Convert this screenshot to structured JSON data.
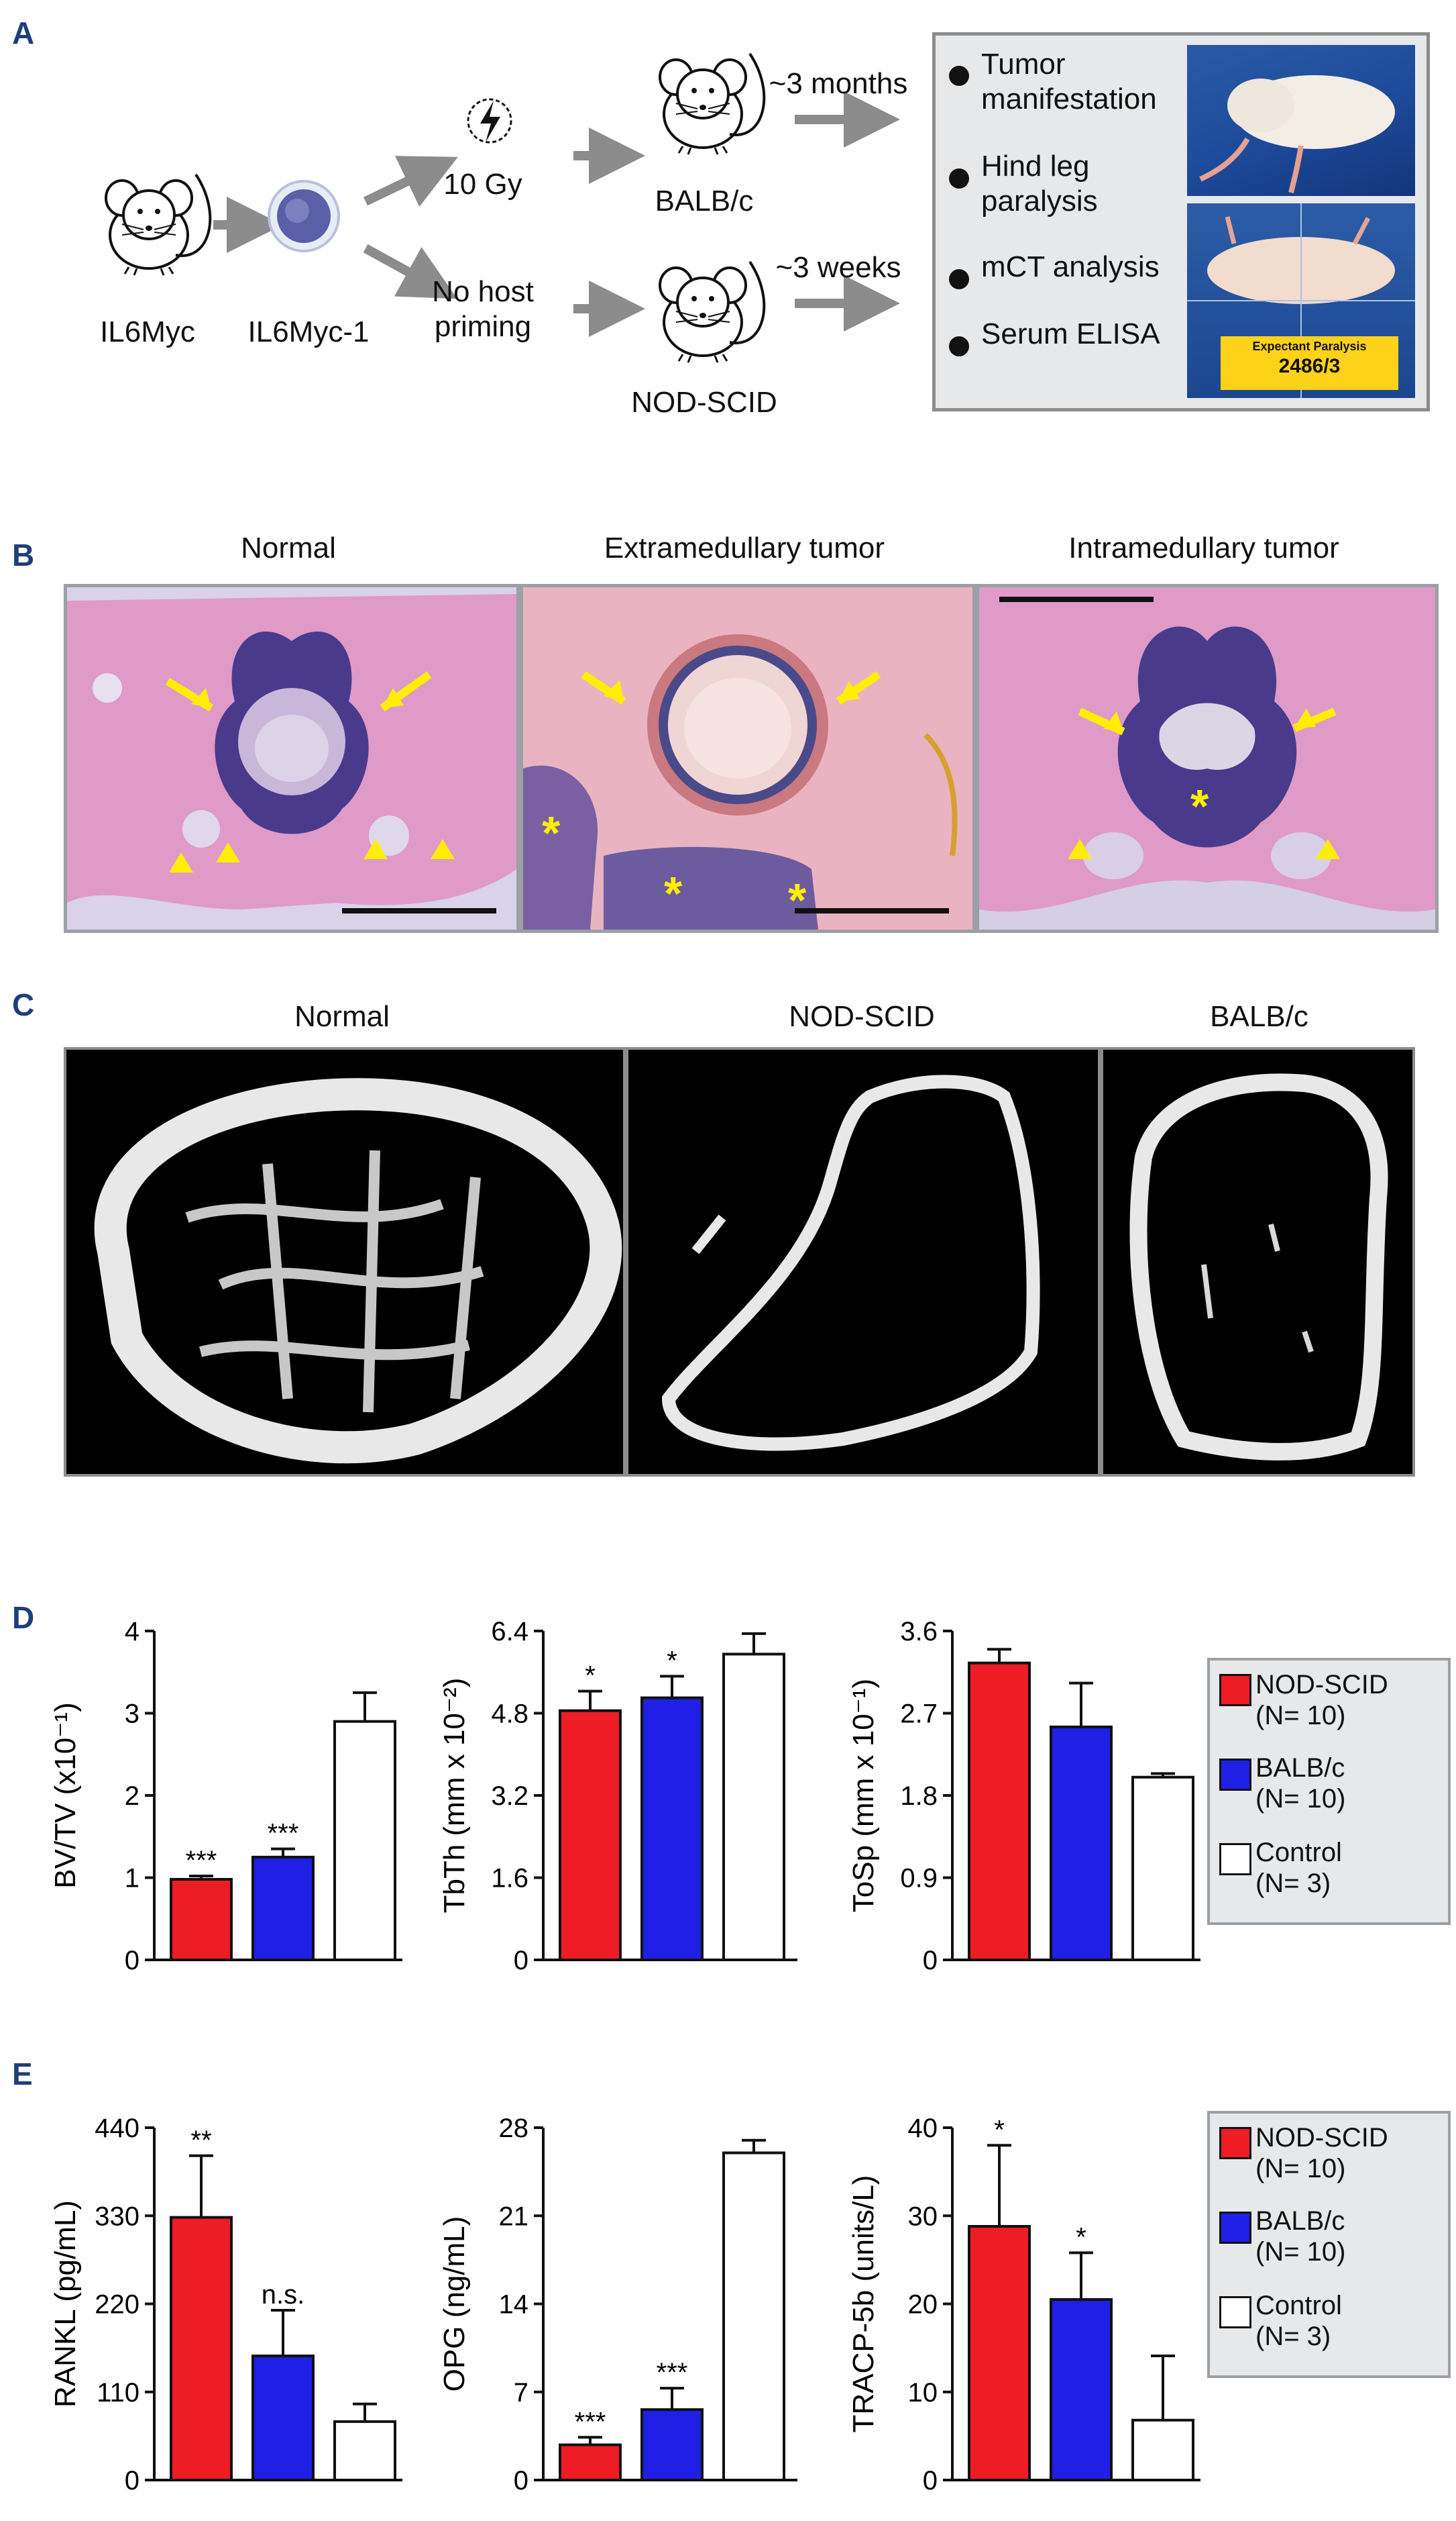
{
  "panels": {
    "a": {
      "letter": "A",
      "mouse_source": "IL6Myc",
      "cell_line": "IL6Myc-1",
      "irradiation": "10 Gy",
      "no_priming_line1": "No host",
      "no_priming_line2": "priming",
      "strain_top": "BALB/c",
      "strain_bottom": "NOD-SCID",
      "time_top": "~3 months",
      "time_bottom": "~3 weeks",
      "outcomes": [
        "Tumor",
        "manifestation",
        "Hind leg",
        "paralysis",
        "mCT analysis",
        "Serum ELISA"
      ],
      "photo_label_line1": "Expectant Paralysis",
      "photo_label_line2": "2486/3"
    },
    "b": {
      "letter": "B",
      "titles": [
        "Normal",
        "Extramedullary tumor",
        "Intramedullary tumor"
      ]
    },
    "c": {
      "letter": "C",
      "titles": [
        "Normal",
        "NOD-SCID",
        "BALB/c"
      ]
    },
    "d": {
      "letter": "D"
    },
    "e": {
      "letter": "E"
    }
  },
  "legend": {
    "items": [
      {
        "name_line1": "NOD-SCID",
        "name_line2": "(N= 10)",
        "color": "#ee1c25"
      },
      {
        "name_line1": "BALB/c",
        "name_line2": "(N= 10)",
        "color": "#1f1fe6"
      },
      {
        "name_line1": "Control",
        "name_line2": "(N= 3)",
        "color": "#ffffff"
      }
    ]
  },
  "colors": {
    "panel_letter": "#1f3f7a",
    "arrow": "#8c8c8c",
    "he_stain_pink": "#d985b8",
    "he_stain_purple": "#4a3a8c",
    "annotation_yellow": "#ffee00",
    "legend_bg": "#e7e8ea"
  },
  "chart_data": [
    {
      "type": "bar",
      "ylabel": "BV/TV (x10⁻¹)",
      "categories": [
        "NOD-SCID",
        "BALB/c",
        "Control"
      ],
      "values": [
        0.98,
        1.25,
        2.9
      ],
      "errors": [
        0.04,
        0.1,
        0.35
      ],
      "sig": [
        "***",
        "***",
        ""
      ],
      "ylim": [
        0,
        4
      ],
      "ticks": [
        "0",
        "1",
        "2",
        "3",
        "4"
      ]
    },
    {
      "type": "bar",
      "ylabel": "TbTh (mm x 10⁻²)",
      "categories": [
        "NOD-SCID",
        "BALB/c",
        "Control"
      ],
      "values": [
        4.85,
        5.1,
        5.95
      ],
      "errors": [
        0.38,
        0.42,
        0.4
      ],
      "sig": [
        "*",
        "*",
        ""
      ],
      "ylim": [
        0,
        6.4
      ],
      "ticks": [
        "0",
        "1.6",
        "3.2",
        "4.8",
        "6.4"
      ]
    },
    {
      "type": "bar",
      "ylabel": "ToSp (mm x 10⁻¹)",
      "categories": [
        "NOD-SCID",
        "BALB/c",
        "Control"
      ],
      "values": [
        3.25,
        2.55,
        2.0
      ],
      "errors": [
        0.15,
        0.48,
        0.04
      ],
      "sig": [
        "",
        "",
        ""
      ],
      "ylim": [
        0,
        3.6
      ],
      "ticks": [
        "0",
        "0.9",
        "1.8",
        "2.7",
        "3.6"
      ]
    },
    {
      "type": "bar",
      "ylabel": "RANKL (pg/mL)",
      "categories": [
        "NOD-SCID",
        "BALB/c",
        "Control"
      ],
      "values": [
        328,
        155,
        73
      ],
      "errors": [
        77,
        57,
        22
      ],
      "sig": [
        "**",
        "n.s.",
        ""
      ],
      "ylim": [
        0,
        440
      ],
      "ticks": [
        "0",
        "110",
        "220",
        "330",
        "440"
      ]
    },
    {
      "type": "bar",
      "ylabel": "OPG (ng/mL)",
      "categories": [
        "NOD-SCID",
        "BALB/c",
        "Control"
      ],
      "values": [
        2.8,
        5.6,
        26
      ],
      "errors": [
        0.6,
        1.7,
        1.0
      ],
      "sig": [
        "***",
        "***",
        ""
      ],
      "ylim": [
        0,
        28
      ],
      "ticks": [
        "0",
        "7",
        "14",
        "21",
        "28"
      ]
    },
    {
      "type": "bar",
      "ylabel": "TRACP-5b (units/L)",
      "categories": [
        "NOD-SCID",
        "BALB/c",
        "Control"
      ],
      "values": [
        28.8,
        20.5,
        6.8
      ],
      "errors": [
        9.2,
        5.3,
        7.3
      ],
      "sig": [
        "*",
        "*",
        ""
      ],
      "ylim": [
        0,
        40
      ],
      "ticks": [
        "0",
        "10",
        "20",
        "30",
        "40"
      ]
    }
  ]
}
